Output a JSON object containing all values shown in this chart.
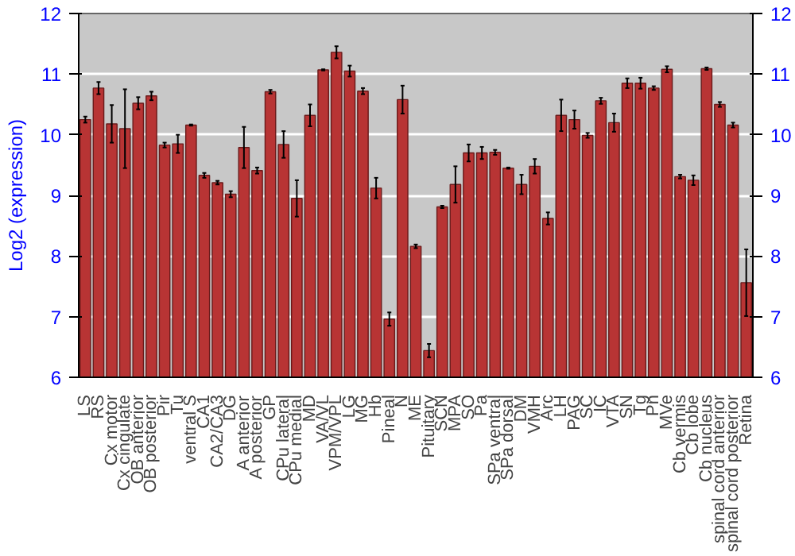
{
  "chart_data": {
    "type": "bar",
    "ylabel": "Log2 (expression)",
    "categories": [
      "LS",
      "RS",
      "Cx motor",
      "Cx cingulate",
      "OB anterior",
      "OB posterior",
      "Pir",
      "Tu",
      "ventral S",
      "CA1",
      "CA2/CA3",
      "DG",
      "A anterior",
      "A posterior",
      "GP",
      "CPu lateral",
      "CPu medial",
      "MD",
      "VA/VL",
      "VPM/VPL",
      "LG",
      "MG",
      "Hb",
      "Pineal",
      "N",
      "ME",
      "Pituitary",
      "SCN",
      "MPA",
      "SO",
      "Pa",
      "SPa ventral",
      "SPa dorsal",
      "DM",
      "VMH",
      "Arc",
      "LH",
      "PAG",
      "SC",
      "IC",
      "VTA",
      "SN",
      "Tg",
      "Pn",
      "MVe",
      "Cb vermis",
      "Cb lobe",
      "Cb nucleus",
      "spinal cord anterior",
      "spinal cord posterior",
      "Retina"
    ],
    "values": [
      10.25,
      10.77,
      10.18,
      10.1,
      10.52,
      10.64,
      9.83,
      9.85,
      10.16,
      9.33,
      9.21,
      9.02,
      9.79,
      9.41,
      10.71,
      9.84,
      8.95,
      10.32,
      11.07,
      11.36,
      11.05,
      10.72,
      9.12,
      6.96,
      10.58,
      8.16,
      6.44,
      8.81,
      9.18,
      9.7,
      9.7,
      9.71,
      9.45,
      9.18,
      9.48,
      8.62,
      10.32,
      10.25,
      9.99,
      10.56,
      10.2,
      10.85,
      10.85,
      10.77,
      11.08,
      9.31,
      9.25,
      11.09,
      10.5,
      10.16,
      7.56
    ],
    "errors": [
      0.05,
      0.1,
      0.31,
      0.65,
      0.1,
      0.07,
      0.04,
      0.15,
      0.01,
      0.04,
      0.03,
      0.05,
      0.34,
      0.05,
      0.03,
      0.22,
      0.3,
      0.18,
      0.01,
      0.1,
      0.09,
      0.05,
      0.17,
      0.11,
      0.23,
      0.03,
      0.11,
      0.02,
      0.3,
      0.14,
      0.1,
      0.04,
      0.01,
      0.16,
      0.12,
      0.1,
      0.26,
      0.15,
      0.04,
      0.05,
      0.15,
      0.08,
      0.09,
      0.03,
      0.05,
      0.03,
      0.08,
      0.02,
      0.04,
      0.04,
      0.55
    ],
    "color": "#b83434",
    "ylim": [
      6,
      12
    ],
    "yticks": [
      6,
      7,
      8,
      9,
      10,
      11,
      12
    ],
    "y2lim": [
      6,
      12
    ],
    "y2ticks": [
      6,
      7,
      8,
      9,
      10,
      11,
      12
    ],
    "grid": "y"
  }
}
